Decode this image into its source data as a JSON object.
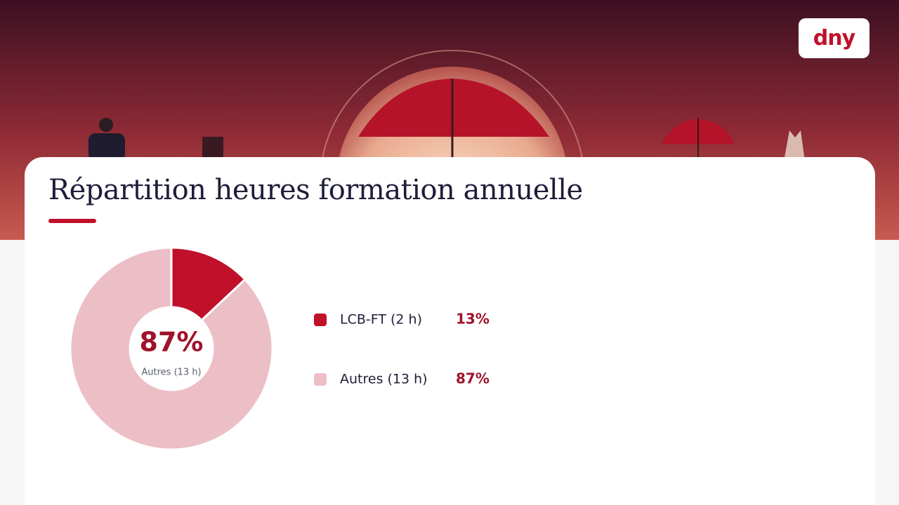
{
  "logo": "dny",
  "chart_data": {
    "type": "pie",
    "title": "Répartition heures formation annuelle",
    "categories": [
      "LCB-FT (2 h)",
      "Autres (13 h)"
    ],
    "values": [
      13,
      87
    ],
    "value_labels": [
      "13%",
      "87%"
    ],
    "colors": [
      "#c0102a",
      "#ecbfc6"
    ],
    "hole": true
  }
}
